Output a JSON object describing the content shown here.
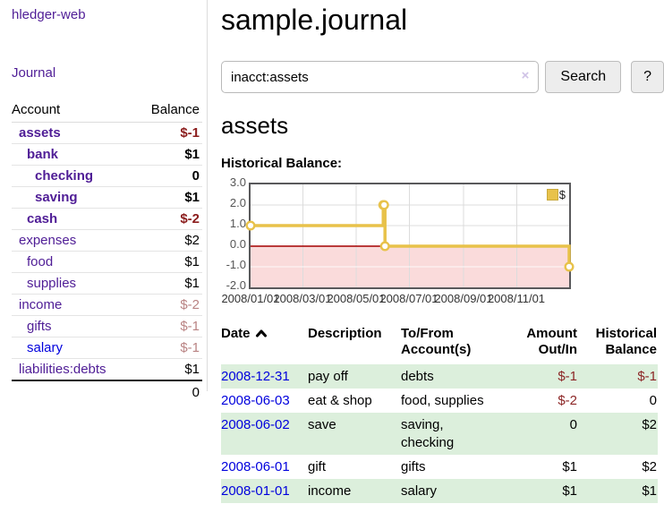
{
  "sidebar": {
    "brand": "hledger-web",
    "journal_link": "Journal",
    "accounts": {
      "header_account": "Account",
      "header_balance": "Balance",
      "rows": [
        {
          "account": "assets",
          "depth": 1,
          "bold": true,
          "balance": "$-1",
          "balance_style": "neg-strong",
          "link": "visited"
        },
        {
          "account": "bank",
          "depth": 2,
          "bold": true,
          "balance": "$1",
          "balance_style": "",
          "link": "visited"
        },
        {
          "account": "checking",
          "depth": 3,
          "bold": true,
          "balance": "0",
          "balance_style": "",
          "link": "visited"
        },
        {
          "account": "saving",
          "depth": 3,
          "bold": true,
          "balance": "$1",
          "balance_style": "",
          "link": "visited"
        },
        {
          "account": "cash",
          "depth": 2,
          "bold": true,
          "balance": "$-2",
          "balance_style": "neg-strong",
          "link": "visited"
        },
        {
          "account": "expenses",
          "depth": 1,
          "bold": false,
          "balance": "$2",
          "balance_style": "",
          "link": "visited"
        },
        {
          "account": "food",
          "depth": 2,
          "bold": false,
          "balance": "$1",
          "balance_style": "",
          "link": "visited"
        },
        {
          "account": "supplies",
          "depth": 2,
          "bold": false,
          "balance": "$1",
          "balance_style": "",
          "link": "visited"
        },
        {
          "account": "income",
          "depth": 1,
          "bold": false,
          "balance": "$-2",
          "balance_style": "neg-soft",
          "link": "visited"
        },
        {
          "account": "gifts",
          "depth": 2,
          "bold": false,
          "balance": "$-1",
          "balance_style": "neg-soft",
          "link": "visited"
        },
        {
          "account": "salary",
          "depth": 2,
          "bold": false,
          "balance": "$-1",
          "balance_style": "neg-soft",
          "link": "unvisited"
        },
        {
          "account": "liabilities:debts",
          "depth": 1,
          "bold": false,
          "balance": "$1",
          "balance_style": "",
          "link": "visited"
        }
      ],
      "total": "0"
    }
  },
  "main": {
    "title": "sample.journal",
    "search": {
      "value": "inacct:assets",
      "clear_icon": "×",
      "button_label": "Search",
      "help_label": "?"
    },
    "account_heading": "assets"
  },
  "chart_data": {
    "type": "line",
    "subtype": "step-after",
    "title": "Historical Balance:",
    "xlabel": "",
    "ylabel": "",
    "ylim": [
      -2,
      3
    ],
    "xlim_days": [
      0,
      365
    ],
    "grid": true,
    "legend_position": "top-right",
    "negative_region_color": "#fadbdb",
    "zero_line_color": "#a40000",
    "yticks": [
      {
        "value": 3,
        "label": "3.0"
      },
      {
        "value": 2,
        "label": "2.0"
      },
      {
        "value": 1,
        "label": "1.0"
      },
      {
        "value": 0,
        "label": "0.0"
      },
      {
        "value": -1,
        "label": "-1.0"
      },
      {
        "value": -2,
        "label": "-2.0"
      }
    ],
    "xticks": [
      {
        "day": 0,
        "label": "2008/01/01"
      },
      {
        "day": 60,
        "label": "2008/03/01"
      },
      {
        "day": 121,
        "label": "2008/05/01"
      },
      {
        "day": 182,
        "label": "2008/07/01"
      },
      {
        "day": 244,
        "label": "2008/09/01"
      },
      {
        "day": 305,
        "label": "2008/11/01"
      }
    ],
    "series": [
      {
        "name": "$",
        "color": "#e8c24a",
        "points": [
          {
            "date": "2008-01-01",
            "day": 0,
            "value": 1
          },
          {
            "date": "2008-06-01",
            "day": 152,
            "value": 2
          },
          {
            "date": "2008-06-02",
            "day": 153,
            "value": 2
          },
          {
            "date": "2008-06-03",
            "day": 154,
            "value": 0
          },
          {
            "date": "2008-12-31",
            "day": 365,
            "value": -1
          }
        ]
      }
    ]
  },
  "register": {
    "columns": [
      {
        "lines": [
          "Date"
        ],
        "sort": "asc"
      },
      {
        "lines": [
          "Description"
        ]
      },
      {
        "lines": [
          "To/From",
          "Account(s)"
        ]
      },
      {
        "lines": [
          "Amount",
          "Out/In"
        ],
        "align": "right"
      },
      {
        "lines": [
          "Historical",
          "Balance"
        ],
        "align": "right"
      }
    ],
    "rows": [
      {
        "date": "2008-12-31",
        "description": "pay off",
        "accounts_lines": [
          "debts"
        ],
        "amount": "$-1",
        "amount_negative": true,
        "balance": "$-1",
        "balance_negative": true
      },
      {
        "date": "2008-06-03",
        "description": "eat & shop",
        "accounts_lines": [
          "food, supplies"
        ],
        "amount": "$-2",
        "amount_negative": true,
        "balance": "0",
        "balance_negative": false
      },
      {
        "date": "2008-06-02",
        "description": "save",
        "accounts_lines": [
          "saving,",
          "checking"
        ],
        "amount": "0",
        "amount_negative": false,
        "balance": "$2",
        "balance_negative": false
      },
      {
        "date": "2008-06-01",
        "description": "gift",
        "accounts_lines": [
          "gifts"
        ],
        "amount": "$1",
        "amount_negative": false,
        "balance": "$2",
        "balance_negative": false
      },
      {
        "date": "2008-01-01",
        "description": "income",
        "accounts_lines": [
          "salary"
        ],
        "amount": "$1",
        "amount_negative": false,
        "balance": "$1",
        "balance_negative": false
      }
    ]
  },
  "colors": {
    "link_blue": "#0000dd",
    "link_purple": "#4f1d96",
    "negative_strong": "#8b1c1c",
    "negative_soft": "#b98383",
    "negative_table": "#8c2626",
    "row_stripe_green": "#dcefdc",
    "chart_gold": "#e8c24a"
  }
}
